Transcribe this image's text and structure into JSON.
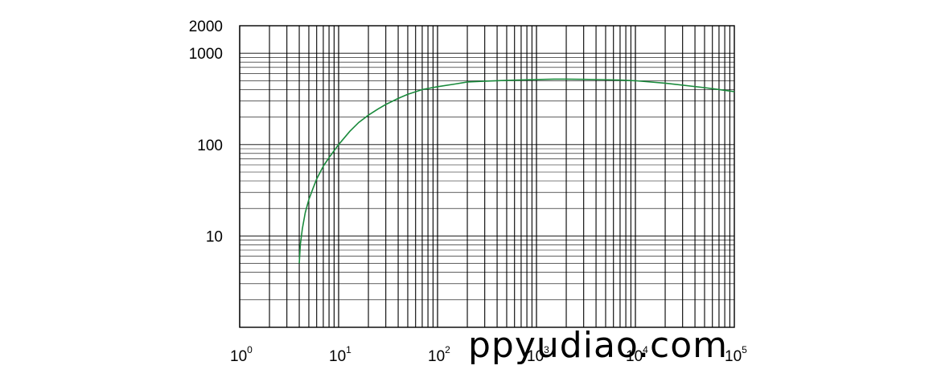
{
  "chart_data": {
    "type": "line",
    "title": "",
    "xlabel": "",
    "ylabel": "",
    "x_scale": "log",
    "y_scale": "log",
    "xlim": [
      1,
      100000
    ],
    "ylim": [
      1,
      2000
    ],
    "grid": true,
    "line_color": "#1a8a3c",
    "x_ticks": [
      {
        "value": 1,
        "base": "10",
        "exp": "0"
      },
      {
        "value": 10,
        "base": "10",
        "exp": "1"
      },
      {
        "value": 100,
        "base": "10",
        "exp": "2"
      },
      {
        "value": 1000,
        "base": "10",
        "exp": "3"
      },
      {
        "value": 10000,
        "base": "10",
        "exp": "4"
      },
      {
        "value": 100000,
        "base": "10",
        "exp": "5"
      }
    ],
    "y_ticks": [
      {
        "value": 10,
        "label": "10"
      },
      {
        "value": 100,
        "label": "100"
      },
      {
        "value": 1000,
        "label": "1000"
      },
      {
        "value": 2000,
        "label": "2000"
      }
    ],
    "series": [
      {
        "x": [
          4,
          4.1,
          4.3,
          4.6,
          5,
          5.5,
          6,
          7,
          8,
          10,
          13,
          16,
          20,
          25,
          30,
          40,
          50,
          70,
          100,
          150,
          200,
          300,
          500,
          700,
          1000,
          1500,
          2000,
          3000,
          5000,
          7000,
          10000,
          20000,
          50000,
          100000
        ],
        "y": [
          5,
          8,
          12,
          18,
          25,
          33,
          42,
          58,
          72,
          100,
          140,
          175,
          210,
          245,
          275,
          320,
          355,
          400,
          430,
          460,
          485,
          495,
          505,
          510,
          515,
          520,
          520,
          518,
          513,
          508,
          500,
          470,
          420,
          380
        ]
      }
    ]
  },
  "watermark": {
    "text": "ppyudiao.com"
  }
}
